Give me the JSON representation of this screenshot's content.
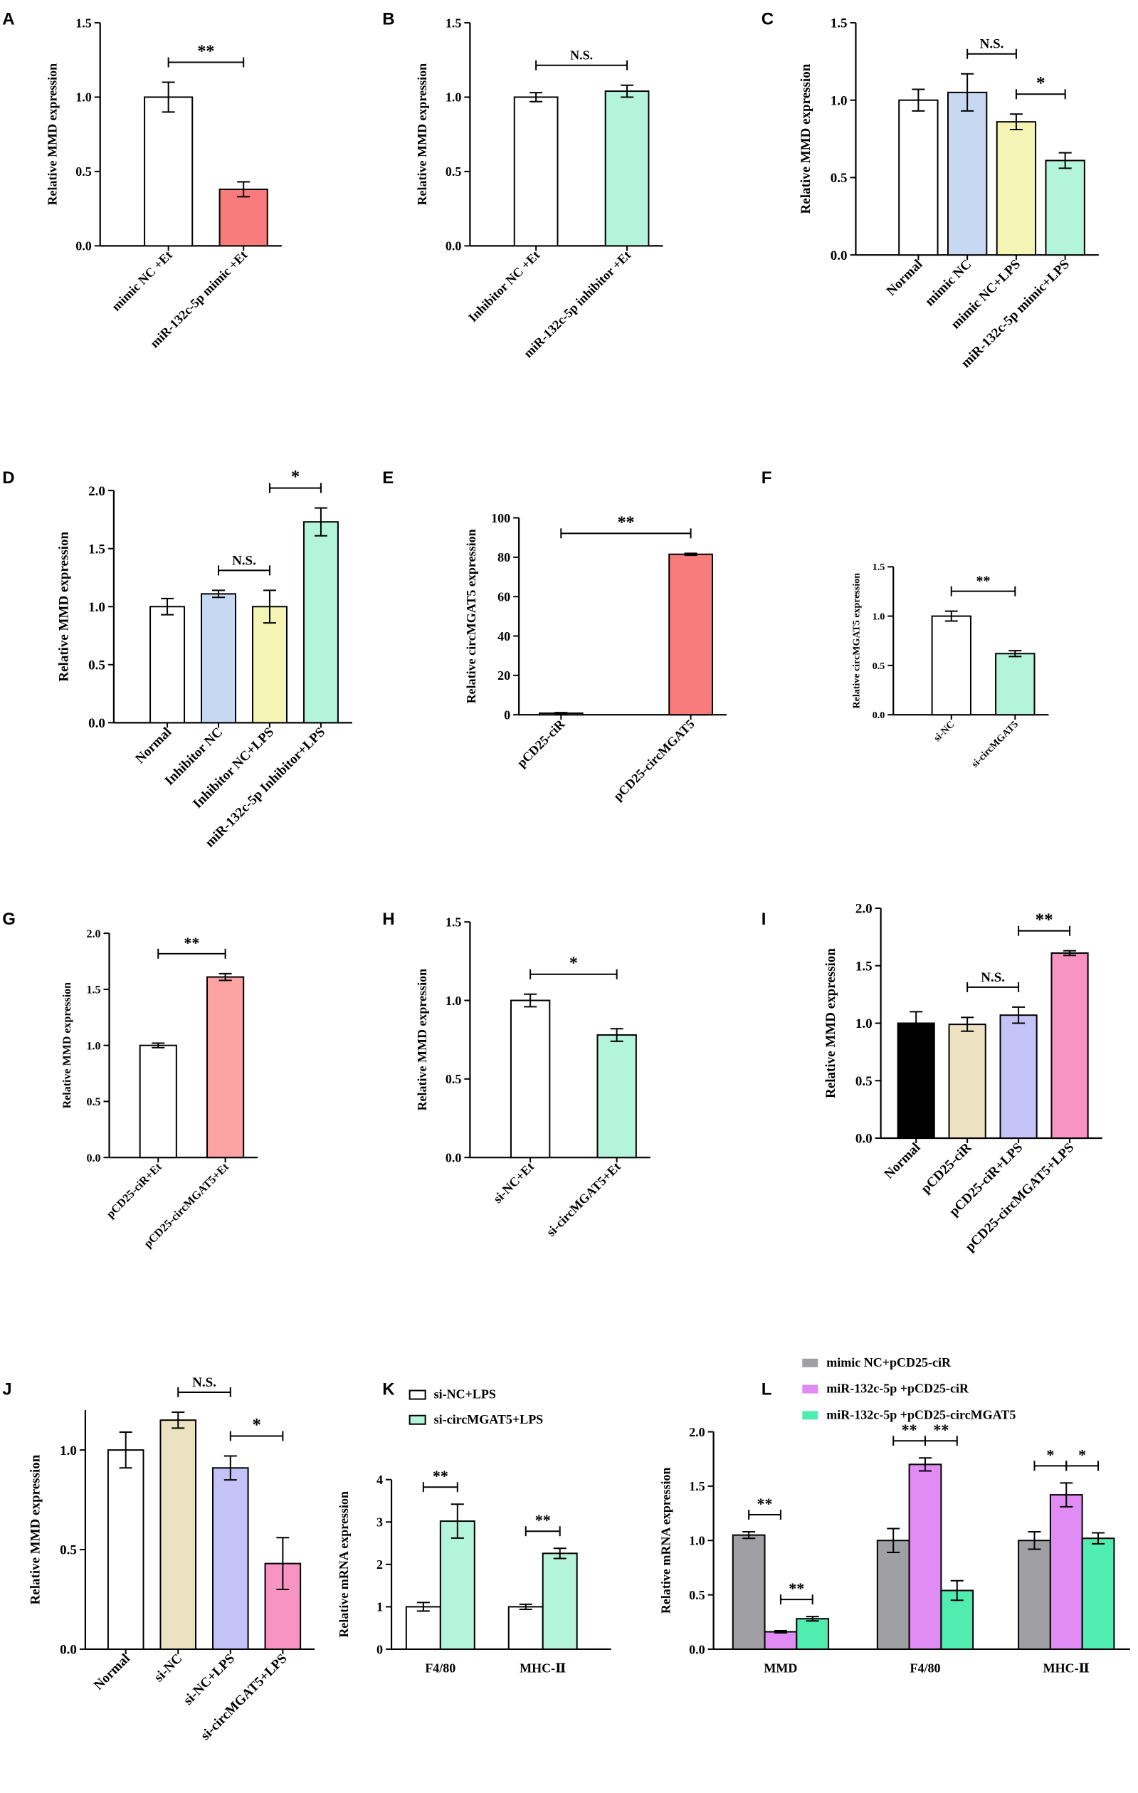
{
  "chart_data": [
    {
      "panel": "A",
      "type": "bar",
      "ylabel": "Relative MMD expression",
      "ylim": [
        0,
        1.5
      ],
      "yticks": [
        "0.0",
        "0.5",
        "1.0",
        "1.5"
      ],
      "categories": [
        "mimic NC +Et",
        "miR-132c-5p mimic +Et"
      ],
      "values": [
        1.0,
        0.38
      ],
      "errors": [
        0.1,
        0.05
      ],
      "colors": [
        "#ffffff",
        "#f87c7c"
      ],
      "annotations": [
        {
          "label": "**",
          "from": 0,
          "to": 1
        }
      ]
    },
    {
      "panel": "B",
      "type": "bar",
      "ylabel": "Relative MMD expression",
      "ylim": [
        0,
        1.5
      ],
      "yticks": [
        "0.0",
        "0.5",
        "1.0",
        "1.5"
      ],
      "categories": [
        "Inhibitor NC +Et",
        "miR-132c-5p inhibitor +Et"
      ],
      "values": [
        1.0,
        1.04
      ],
      "errors": [
        0.03,
        0.04
      ],
      "colors": [
        "#ffffff",
        "#b4f4dc"
      ],
      "annotations": [
        {
          "label": "N.S.",
          "from": 0,
          "to": 1
        }
      ]
    },
    {
      "panel": "C",
      "type": "bar",
      "ylabel": "Relative MMD expression",
      "ylim": [
        0,
        1.5
      ],
      "yticks": [
        "0.0",
        "0.5",
        "1.0",
        "1.5"
      ],
      "categories": [
        "Normal",
        "mimic NC",
        "mimic NC+LPS",
        "miR-132c-5p mimic+LPS"
      ],
      "values": [
        1.0,
        1.05,
        0.86,
        0.61
      ],
      "errors": [
        0.07,
        0.12,
        0.05,
        0.05
      ],
      "colors": [
        "#ffffff",
        "#c6d8f2",
        "#f4f5b4",
        "#b4f4dc"
      ],
      "annotations": [
        {
          "label": "N.S.",
          "from": 1,
          "to": 2
        },
        {
          "label": "*",
          "from": 2,
          "to": 3
        }
      ]
    },
    {
      "panel": "D",
      "type": "bar",
      "ylabel": "Relative MMD expression",
      "ylim": [
        0,
        2.0
      ],
      "yticks": [
        "0.0",
        "0.5",
        "1.0",
        "1.5",
        "2.0"
      ],
      "categories": [
        "Normal",
        "Inhibitor NC",
        "Inhibitor NC+LPS",
        "miR-132c-5p Inhibitor+LPS"
      ],
      "values": [
        1.0,
        1.11,
        1.0,
        1.73
      ],
      "errors": [
        0.07,
        0.03,
        0.14,
        0.12
      ],
      "colors": [
        "#ffffff",
        "#c6d8f2",
        "#f4f5b4",
        "#b4f4dc"
      ],
      "annotations": [
        {
          "label": "N.S.",
          "from": 1,
          "to": 2
        },
        {
          "label": "*",
          "from": 2,
          "to": 3
        }
      ]
    },
    {
      "panel": "E",
      "type": "bar",
      "ylabel": "Relative  circMGAT5 expression",
      "ylim": [
        0,
        100
      ],
      "yticks": [
        "0",
        "20",
        "40",
        "60",
        "80",
        "100"
      ],
      "categories": [
        "pCD25-ciR",
        "pCD25-circMGAT5"
      ],
      "values": [
        0.8,
        81.5
      ],
      "errors": [
        0.3,
        0.5
      ],
      "colors": [
        "#ffffff",
        "#f87c7c"
      ],
      "annotations": [
        {
          "label": "**",
          "from": 0,
          "to": 1
        }
      ]
    },
    {
      "panel": "F",
      "type": "bar",
      "ylabel": "Relative  circMGAT5 expression",
      "ylim": [
        0,
        1.5
      ],
      "yticks": [
        "0.0",
        "0.5",
        "1.0",
        "1.5"
      ],
      "categories": [
        "si-NC",
        "si-circMGAT5"
      ],
      "values": [
        1.0,
        0.62
      ],
      "errors": [
        0.05,
        0.03
      ],
      "colors": [
        "#ffffff",
        "#b4f4dc"
      ],
      "annotations": [
        {
          "label": "**",
          "from": 0,
          "to": 1
        }
      ]
    },
    {
      "panel": "G",
      "type": "bar",
      "ylabel": "Relative MMD expression",
      "ylim": [
        0,
        2.0
      ],
      "yticks": [
        "0.0",
        "0.5",
        "1.0",
        "1.5",
        "2.0"
      ],
      "categories": [
        "pCD25-ciR+Et",
        "pCD25-circMGAT5+Et"
      ],
      "values": [
        1.0,
        1.61
      ],
      "errors": [
        0.02,
        0.03
      ],
      "colors": [
        "#ffffff",
        "#fca4a4"
      ],
      "annotations": [
        {
          "label": "**",
          "from": 0,
          "to": 1
        }
      ]
    },
    {
      "panel": "H",
      "type": "bar",
      "ylabel": "Relative MMD expression",
      "ylim": [
        0,
        1.5
      ],
      "yticks": [
        "0.0",
        "0.5",
        "1.0",
        "1.5"
      ],
      "categories": [
        "si-NC+Et",
        "si-circMGAT5+Et"
      ],
      "values": [
        1.0,
        0.78
      ],
      "errors": [
        0.04,
        0.04
      ],
      "colors": [
        "#ffffff",
        "#b4f4dc"
      ],
      "annotations": [
        {
          "label": "*",
          "from": 0,
          "to": 1
        }
      ]
    },
    {
      "panel": "I",
      "type": "bar",
      "ylabel": "Relative MMD expression",
      "ylim": [
        0,
        2.0
      ],
      "yticks": [
        "0.0",
        "0.5",
        "1.0",
        "1.5",
        "2.0"
      ],
      "categories": [
        "Normal",
        "pCD25-ciR",
        "pCD25-ciR+LPS",
        "pCD25-circMGAT5+LPS"
      ],
      "values": [
        1.0,
        0.99,
        1.07,
        1.61
      ],
      "errors": [
        0.1,
        0.06,
        0.07,
        0.02
      ],
      "colors": [
        "#000000",
        "#ece2c2",
        "#c4c2f6",
        "#f794c2"
      ],
      "annotations": [
        {
          "label": "N.S.",
          "from": 1,
          "to": 2
        },
        {
          "label": "**",
          "from": 2,
          "to": 3
        }
      ]
    },
    {
      "panel": "J",
      "type": "bar",
      "ylabel": "Relative MMD expression",
      "ylim": [
        0,
        1.2
      ],
      "yticks": [
        "0.0",
        "0.5",
        "1.0"
      ],
      "categories": [
        "Normal",
        "si-NC",
        "si-NC+LPS",
        "si-circMGAT5+LPS"
      ],
      "values": [
        1.0,
        1.15,
        0.91,
        0.43
      ],
      "errors": [
        0.09,
        0.04,
        0.06,
        0.13
      ],
      "colors": [
        "#ffffff",
        "#ece2c2",
        "#c4c2f6",
        "#f794c2"
      ],
      "annotations": [
        {
          "label": "N.S.",
          "from": 1,
          "to": 2
        },
        {
          "label": "*",
          "from": 2,
          "to": 3
        }
      ]
    },
    {
      "panel": "K",
      "type": "bar",
      "ylabel": "Relative  mRNA expression",
      "ylim": [
        0,
        4
      ],
      "yticks": [
        "0",
        "1",
        "2",
        "3",
        "4"
      ],
      "categories": [
        "F4/80",
        "MHC-Ⅱ"
      ],
      "series": [
        {
          "name": "si-NC+LPS",
          "color": "#ffffff",
          "values": [
            1.0,
            1.0
          ],
          "errors": [
            0.1,
            0.06
          ]
        },
        {
          "name": "si-circMGAT5+LPS",
          "color": "#b4f4dc",
          "values": [
            3.02,
            2.26
          ],
          "errors": [
            0.4,
            0.12
          ]
        }
      ],
      "annotations": [
        {
          "label": "**",
          "group": 0,
          "from": 0,
          "to": 1
        },
        {
          "label": "**",
          "group": 1,
          "from": 0,
          "to": 1
        }
      ]
    },
    {
      "panel": "L",
      "type": "bar",
      "ylabel": "Relative  mRNA expression",
      "ylim": [
        0,
        2.0
      ],
      "yticks": [
        "0.0",
        "0.5",
        "1.0",
        "1.5",
        "2.0"
      ],
      "categories": [
        "MMD",
        "F4/80",
        "MHC-Ⅱ"
      ],
      "series": [
        {
          "name": "mimic NC+pCD25-ciR",
          "color": "#a0a0a4",
          "values": [
            1.05,
            1.0,
            1.0
          ],
          "errors": [
            0.03,
            0.11,
            0.08
          ]
        },
        {
          "name": "miR-132c-5p +pCD25-ciR",
          "color": "#e08cf4",
          "values": [
            0.16,
            1.7,
            1.42
          ],
          "errors": [
            0.01,
            0.06,
            0.11
          ]
        },
        {
          "name": "miR-132c-5p +pCD25-circMGAT5",
          "color": "#50ecb0",
          "values": [
            0.28,
            0.54,
            1.02
          ],
          "errors": [
            0.02,
            0.09,
            0.05
          ]
        }
      ],
      "annotations": [
        {
          "label": "**",
          "group": 0,
          "from": 0,
          "to": 1
        },
        {
          "label": "**",
          "group": 0,
          "from": 1,
          "to": 2
        },
        {
          "label": "**",
          "group": 1,
          "from": 0,
          "to": 1
        },
        {
          "label": "**",
          "group": 1,
          "from": 1,
          "to": 2
        },
        {
          "label": "*",
          "group": 2,
          "from": 0,
          "to": 1
        },
        {
          "label": "*",
          "group": 2,
          "from": 1,
          "to": 2
        }
      ]
    }
  ]
}
